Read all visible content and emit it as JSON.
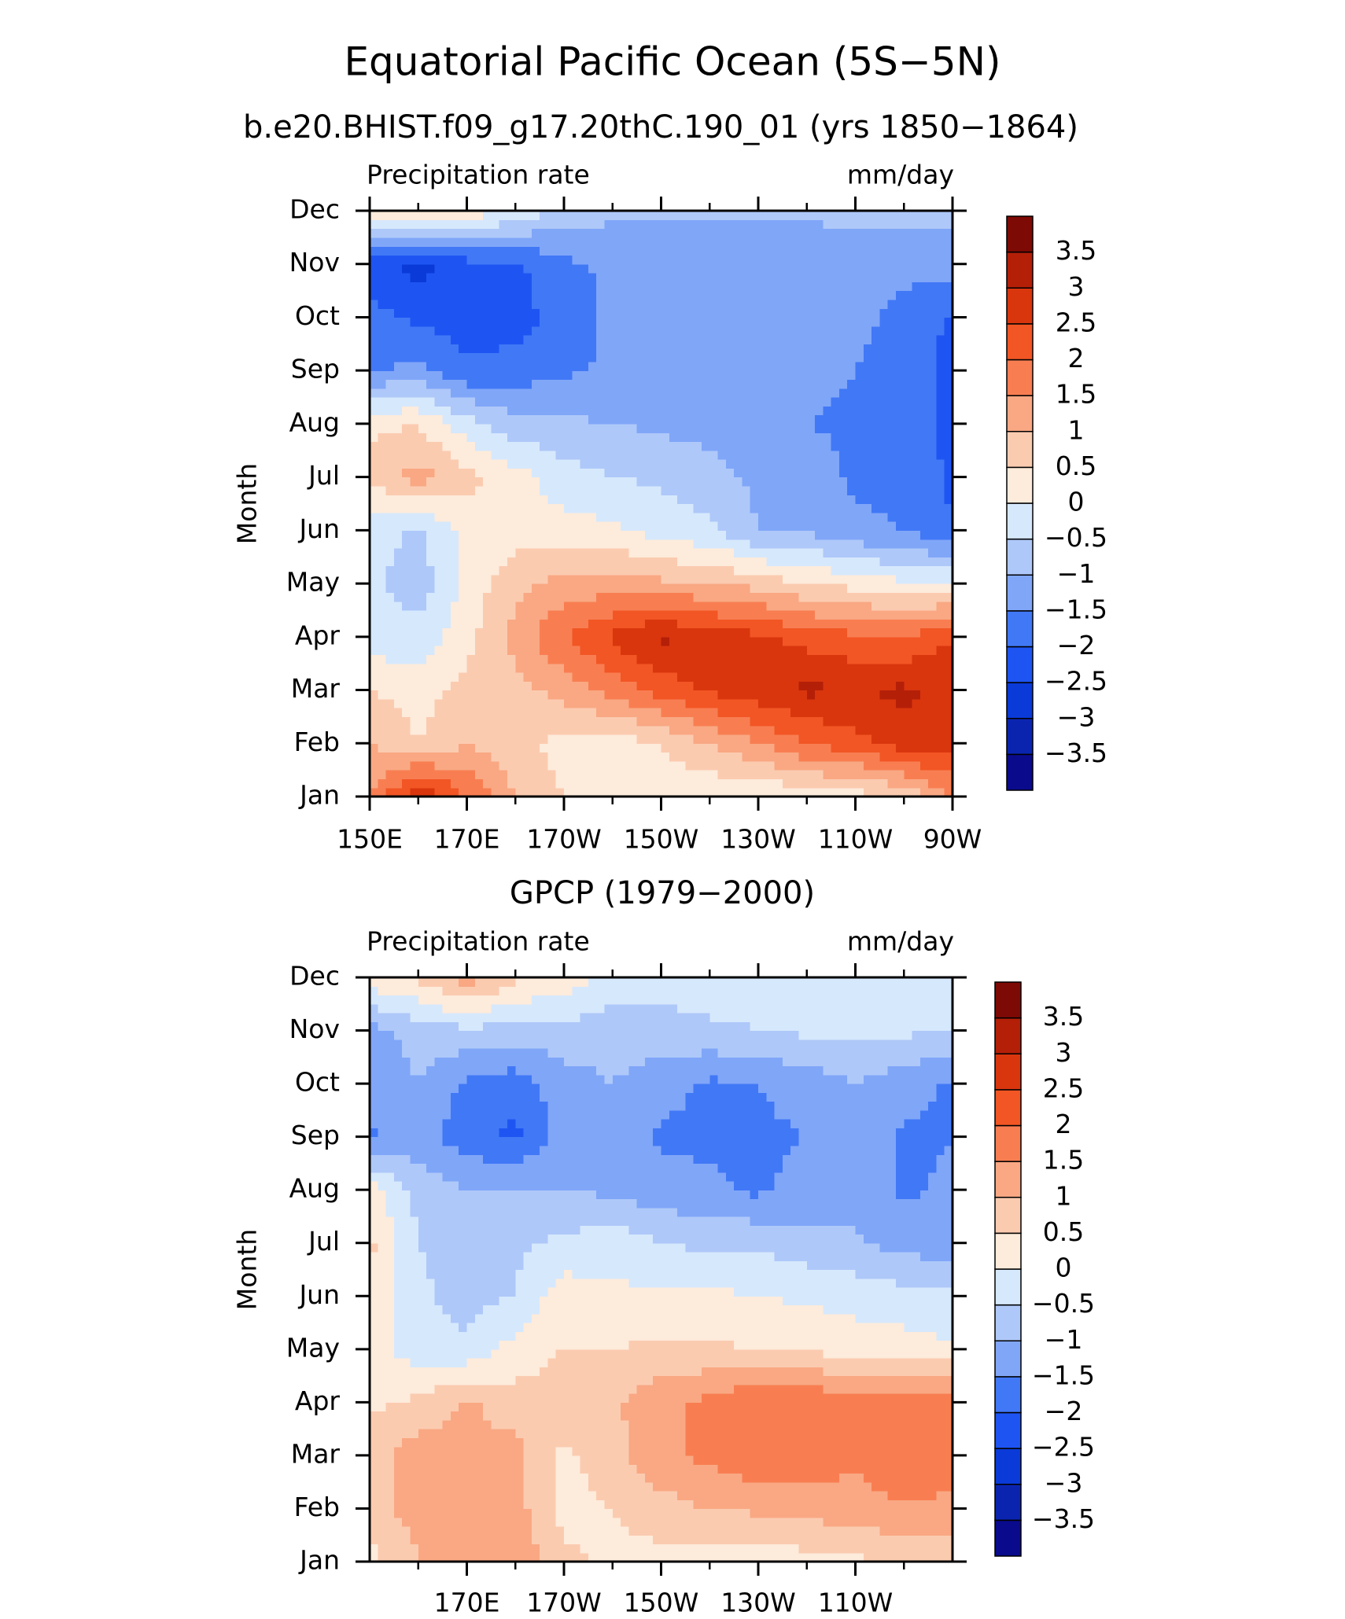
{
  "chart_data": [
    {
      "type": "contour",
      "title": "Equatorial Pacific Ocean (5S−5N)",
      "subtitle": "b.e20.BHIST.f09_g17.20thC.190_01 (yrs 1850−1864)",
      "left_label": "Precipitation rate",
      "right_label": "mm/day",
      "y_label": "Month",
      "categories": [
        "Jan",
        "Feb",
        "Mar",
        "Apr",
        "May",
        "Jun",
        "Jul",
        "Aug",
        "Sep",
        "Oct",
        "Nov",
        "Dec"
      ],
      "x": [
        150,
        160,
        170,
        180,
        190,
        200,
        210,
        220,
        230,
        240,
        250,
        260,
        270
      ],
      "xlim": [
        150,
        270
      ],
      "xticks": [
        {
          "value": 150,
          "label": "150E"
        },
        {
          "value": 170,
          "label": "170E"
        },
        {
          "value": 190,
          "label": "170W"
        },
        {
          "value": 210,
          "label": "150W"
        },
        {
          "value": 230,
          "label": "130W"
        },
        {
          "value": 250,
          "label": "110W"
        },
        {
          "value": 270,
          "label": "90W"
        }
      ],
      "minor_xticks": [
        160,
        180,
        200,
        220,
        240,
        260
      ],
      "z": [
        [
          1.5,
          3,
          2,
          1,
          0.5,
          0.3,
          0.2,
          0.1,
          0,
          0.2,
          0.3,
          0.5,
          1.5
        ],
        [
          1,
          0.5,
          1,
          0.7,
          0.3,
          0.2,
          0.5,
          1,
          1.5,
          2,
          2.3,
          2.8,
          2.8
        ],
        [
          0.5,
          0.3,
          0.7,
          0.8,
          1.2,
          1.7,
          2.2,
          2.6,
          2.8,
          3.1,
          3,
          3.1,
          2.9
        ],
        [
          -0.3,
          -0.3,
          0.3,
          1.2,
          2,
          2.6,
          3.1,
          2.8,
          2.6,
          2.3,
          2.1,
          2,
          2.5
        ],
        [
          -0.4,
          -0.8,
          0.2,
          0.8,
          1.2,
          1.2,
          1.1,
          1,
          0.8,
          0.5,
          0.3,
          0.1,
          0
        ],
        [
          -0.2,
          -0.6,
          0.1,
          0.3,
          0.2,
          0.1,
          -0.2,
          -0.4,
          -1,
          -1.1,
          -1.4,
          -1.5,
          -2
        ],
        [
          0.6,
          1.2,
          0.7,
          0.2,
          -0.3,
          -0.5,
          -0.6,
          -0.8,
          -1.1,
          -1.2,
          -1.6,
          -1.6,
          -2.1
        ],
        [
          0.4,
          0.5,
          -0.3,
          -0.8,
          -0.9,
          -1,
          -1.1,
          -1.2,
          -1.4,
          -1.5,
          -1.6,
          -1.7,
          -2.2
        ],
        [
          -1.6,
          -1.3,
          -1.9,
          -1.8,
          -1.6,
          -1.4,
          -1.4,
          -1.4,
          -1.4,
          -1.4,
          -1.5,
          -1.7,
          -2.2
        ],
        [
          -1.8,
          -2.1,
          -2.3,
          -2.2,
          -1.8,
          -1.4,
          -1.4,
          -1.4,
          -1.4,
          -1.4,
          -1.4,
          -1.6,
          -2.1
        ],
        [
          -2.3,
          -2.7,
          -2.2,
          -2.1,
          -1.6,
          -1.4,
          -1.4,
          -1.4,
          -1.4,
          -1.4,
          -1.4,
          -1.4,
          -1.3
        ],
        [
          0.4,
          0.5,
          0.4,
          -0.2,
          -0.6,
          -0.9,
          -0.9,
          -0.9,
          -0.9,
          -0.9,
          -0.8,
          -0.8,
          -0.9
        ]
      ],
      "levels": [
        {
          "value": -3.5,
          "label": "−3.5"
        },
        {
          "value": -3,
          "label": "−3"
        },
        {
          "value": -2.5,
          "label": "−2.5"
        },
        {
          "value": -2,
          "label": "−2"
        },
        {
          "value": -1.5,
          "label": "−1.5"
        },
        {
          "value": -1,
          "label": "−1"
        },
        {
          "value": -0.5,
          "label": "−0.5"
        },
        0,
        0.5,
        1,
        1.5,
        2,
        2.5,
        3,
        3.5
      ],
      "colors": [
        "#0a0a8c",
        "#0b24b0",
        "#0a3ad8",
        "#1e55f2",
        "#4178f6",
        "#80a6f8",
        "#aec8f9",
        "#d6e8fc",
        "#fdebdb",
        "#fbcbb0",
        "#f9a883",
        "#f87e52",
        "#f25624",
        "#d9360e",
        "#b41f08",
        "#7e0a05"
      ]
    },
    {
      "type": "contour",
      "subtitle": "GPCP (1979−2000)",
      "left_label": "Precipitation rate",
      "right_label": "mm/day",
      "y_label": "Month",
      "categories": [
        "Jan",
        "Feb",
        "Mar",
        "Apr",
        "May",
        "Jun",
        "Jul",
        "Aug",
        "Sep",
        "Oct",
        "Nov",
        "Dec"
      ],
      "x": [
        150,
        160,
        170,
        180,
        190,
        200,
        210,
        220,
        230,
        240,
        250,
        260,
        270
      ],
      "xlim": [
        150,
        270
      ],
      "xticks": [
        {
          "value": 170,
          "label": "170E"
        },
        {
          "value": 190,
          "label": "170W"
        },
        {
          "value": 210,
          "label": "150W"
        },
        {
          "value": 230,
          "label": "130W"
        },
        {
          "value": 250,
          "label": "110W"
        }
      ],
      "minor_xticks": [
        160,
        180,
        200,
        220,
        240,
        260
      ],
      "z": [
        [
          0.3,
          1,
          1.5,
          1.5,
          0.6,
          0.4,
          0.3,
          0.2,
          0.1,
          0.3,
          0.4,
          0.6,
          0.7
        ],
        [
          0.8,
          1.2,
          1.3,
          1.2,
          0.3,
          0.5,
          0.8,
          1,
          1.1,
          1.2,
          1.3,
          1.4,
          1.4
        ],
        [
          0.7,
          1.3,
          1.1,
          1.2,
          0.4,
          0.8,
          1.4,
          1.6,
          1.9,
          1.8,
          1.6,
          2,
          1.7
        ],
        [
          0.4,
          0.6,
          1.1,
          0.7,
          0.8,
          0.9,
          1.4,
          1.6,
          2,
          2,
          1.6,
          1.9,
          1.7
        ],
        [
          0.3,
          -0.3,
          -0.4,
          0.2,
          0.5,
          0.5,
          0.6,
          0.6,
          0.5,
          0.4,
          0.3,
          0.2,
          0.1
        ],
        [
          0.5,
          -0.4,
          -0.7,
          -0.5,
          0.3,
          0.1,
          0.1,
          0.1,
          0,
          -0.1,
          -0.2,
          -0.3,
          -0.4
        ],
        [
          0.6,
          -0.5,
          -0.7,
          -0.6,
          -0.4,
          -0.2,
          -0.5,
          -0.6,
          -0.6,
          -0.8,
          -0.9,
          -1.2,
          -1.3
        ],
        [
          0.3,
          -0.7,
          -1,
          -0.9,
          -1,
          -1.1,
          -1.3,
          -1.4,
          -1.6,
          -1.3,
          -1.2,
          -1.6,
          -1.4
        ],
        [
          -1.6,
          -1.3,
          -1.8,
          -2.1,
          -1.3,
          -1.2,
          -1.6,
          -1.6,
          -1.6,
          -1.5,
          -1.2,
          -1.6,
          -1.5
        ],
        [
          -1.3,
          -1,
          -1.6,
          -1.8,
          -1.2,
          -1,
          -1.3,
          -1.6,
          -1.5,
          -1.3,
          -1,
          -1.3,
          -1.6
        ],
        [
          -1.2,
          -0.8,
          -0.6,
          -0.7,
          -0.7,
          -0.8,
          -0.7,
          -0.6,
          -0.5,
          -0.4,
          -0.4,
          -0.4,
          -0.5
        ],
        [
          0.3,
          0.6,
          1.3,
          0.6,
          0.3,
          -0.2,
          -0.3,
          -0.2,
          -0.3,
          -0.1,
          -0.2,
          -0.3,
          -0.3
        ]
      ],
      "levels": [
        {
          "value": -3.5,
          "label": "−3.5"
        },
        {
          "value": -3,
          "label": "−3"
        },
        {
          "value": -2.5,
          "label": "−2.5"
        },
        {
          "value": -2,
          "label": "−2"
        },
        {
          "value": -1.5,
          "label": "−1.5"
        },
        {
          "value": -1,
          "label": "−1"
        },
        {
          "value": -0.5,
          "label": "−0.5"
        },
        0,
        0.5,
        1,
        1.5,
        2,
        2.5,
        3,
        3.5
      ],
      "colors": [
        "#0a0a8c",
        "#0b24b0",
        "#0a3ad8",
        "#1e55f2",
        "#4178f6",
        "#80a6f8",
        "#aec8f9",
        "#d6e8fc",
        "#fdebdb",
        "#fbcbb0",
        "#f9a883",
        "#f87e52",
        "#f25624",
        "#d9360e",
        "#b41f08",
        "#7e0a05"
      ]
    }
  ]
}
